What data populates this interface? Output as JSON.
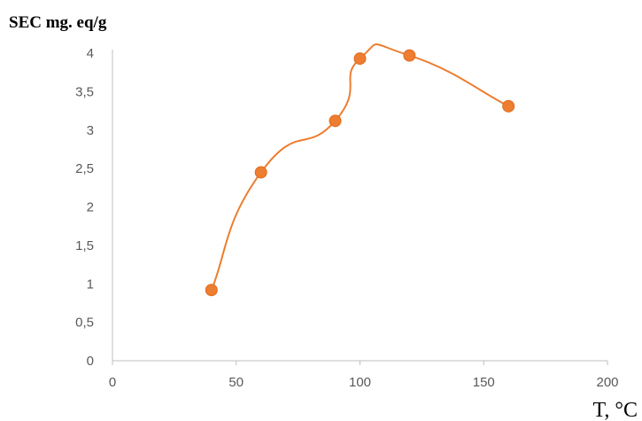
{
  "chart_data": {
    "type": "line",
    "ylabel": "SEC mg. eq/g",
    "xlabel": "T, °C",
    "xlim": [
      0,
      200
    ],
    "ylim": [
      0,
      4
    ],
    "x_ticks": [
      0,
      50,
      100,
      150,
      200
    ],
    "y_ticks": [
      0,
      0.5,
      1,
      1.5,
      2,
      2.5,
      3,
      3.5,
      4
    ],
    "y_tick_labels": [
      "0",
      "0,5",
      "1",
      "1,5",
      "2",
      "2,5",
      "3",
      "3,5",
      "4"
    ],
    "smooth": true,
    "grid": false,
    "series": [
      {
        "color": "#ED7D31",
        "x": [
          40,
          60,
          90,
          100,
          120,
          160
        ],
        "y": [
          0.92,
          2.45,
          3.12,
          3.93,
          3.97,
          3.31
        ]
      }
    ]
  }
}
